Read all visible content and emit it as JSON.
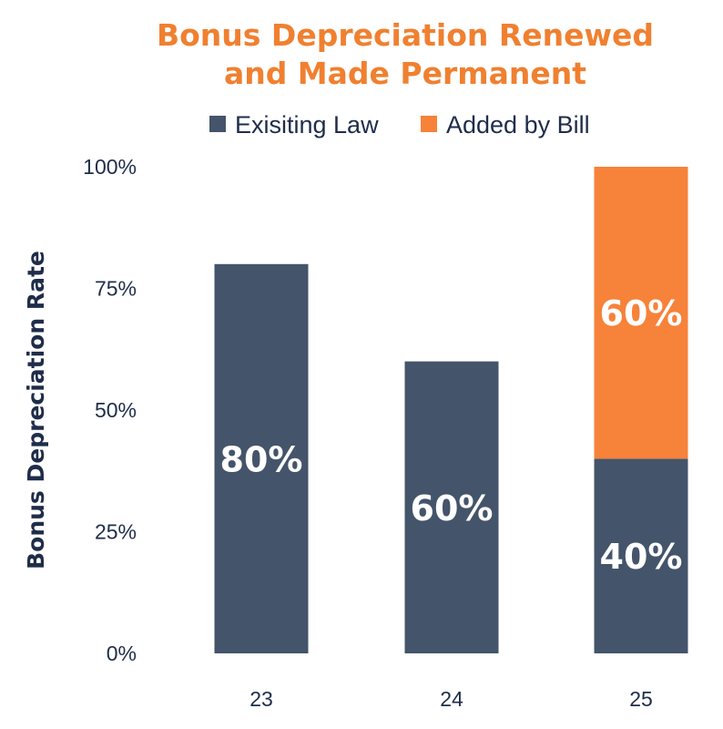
{
  "chart_data": {
    "type": "bar",
    "stacked": true,
    "title_lines": [
      "Bonus Depreciation Renewed",
      "and Made Permanent"
    ],
    "xlabel": "",
    "ylabel": "Bonus Depreciation Rate",
    "categories": [
      "23",
      "24",
      "25"
    ],
    "ylim": [
      0,
      100
    ],
    "yticks": [
      0,
      25,
      50,
      75,
      100
    ],
    "ytick_labels": [
      "0%",
      "25%",
      "50%",
      "75%",
      "100%"
    ],
    "legend_position": "top",
    "grid": false,
    "series": [
      {
        "name": "Exisiting Law",
        "color": "#44546a",
        "values": [
          80,
          60,
          40
        ],
        "labels": [
          "80%",
          "60%",
          "40%"
        ]
      },
      {
        "name": "Added by Bill",
        "color": "#f7823a",
        "values": [
          0,
          0,
          60
        ],
        "labels": [
          "",
          "",
          "60%"
        ]
      }
    ],
    "colors": {
      "title": "#f08030",
      "text": "#1f2d4a"
    }
  }
}
